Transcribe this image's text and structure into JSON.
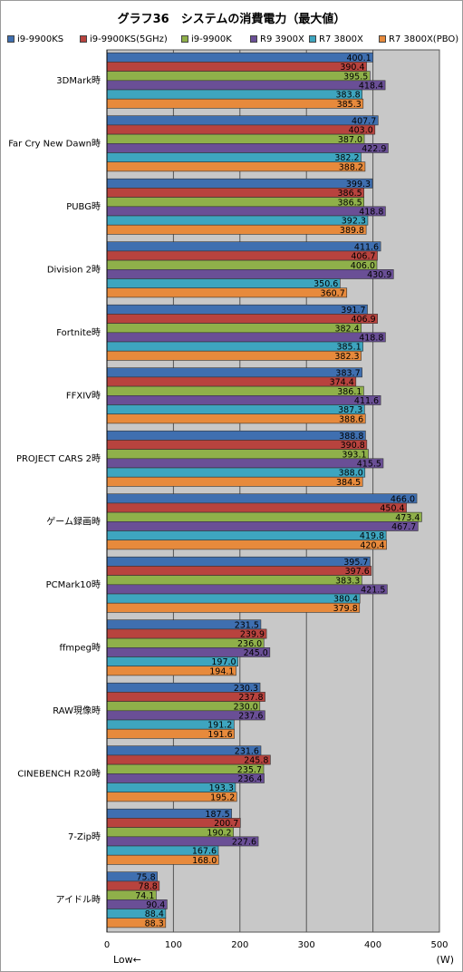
{
  "chart_data": {
    "type": "bar",
    "orientation": "horizontal",
    "title": "グラフ36　システムの消費電力（最大値）",
    "xlabel_note": "Low←",
    "unit": "(W)",
    "xlim": [
      0,
      500
    ],
    "xticks": [
      0,
      100,
      200,
      300,
      400,
      500
    ],
    "grid": true,
    "legend_position": "top",
    "categories": [
      "3DMark時",
      "Far Cry New Dawn時",
      "PUBG時",
      "Division 2時",
      "Fortnite時",
      "FFXIV時",
      "PROJECT CARS 2時",
      "ゲーム録画時",
      "PCMark10時",
      "ffmpeg時",
      "RAW現像時",
      "CINEBENCH R20時",
      "7-Zip時",
      "アイドル時"
    ],
    "series": [
      {
        "name": "i9-9900KS",
        "color": "#3f6fb0",
        "values": [
          400.1,
          407.7,
          399.3,
          411.6,
          391.7,
          383.7,
          388.8,
          466.0,
          395.7,
          231.5,
          230.3,
          231.6,
          187.5,
          75.8
        ]
      },
      {
        "name": "i9-9900KS(5GHz)",
        "color": "#b8433e",
        "values": [
          390.4,
          403.0,
          386.5,
          406.7,
          406.9,
          374.4,
          390.8,
          450.4,
          397.6,
          239.9,
          237.8,
          245.8,
          200.7,
          78.8
        ]
      },
      {
        "name": "i9-9900K",
        "color": "#8fb04a",
        "values": [
          395.5,
          387.0,
          386.5,
          406.0,
          382.4,
          386.1,
          393.1,
          473.4,
          383.3,
          236.0,
          230.0,
          235.7,
          190.2,
          74.1
        ]
      },
      {
        "name": "R9 3900X",
        "color": "#6a4f96",
        "values": [
          418.4,
          422.9,
          418.8,
          430.9,
          418.8,
          411.6,
          415.5,
          467.7,
          421.5,
          245.0,
          237.6,
          236.4,
          227.6,
          90.4
        ]
      },
      {
        "name": "R7 3800X",
        "color": "#3ea5bf",
        "values": [
          383.8,
          382.2,
          392.3,
          350.6,
          385.1,
          387.3,
          388.0,
          419.8,
          380.4,
          197.0,
          191.2,
          193.3,
          167.6,
          88.4
        ]
      },
      {
        "name": "R7 3800X(PBO)",
        "color": "#e78a3c",
        "values": [
          385.3,
          388.2,
          389.8,
          360.7,
          382.3,
          388.6,
          384.5,
          420.4,
          379.8,
          194.1,
          191.6,
          195.2,
          168.0,
          88.3
        ]
      }
    ]
  }
}
